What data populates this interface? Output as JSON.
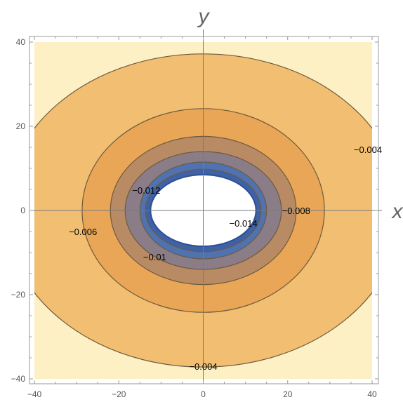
{
  "chart_data": {
    "type": "contour",
    "xlabel": "x",
    "ylabel": "y",
    "xlim": [
      -40,
      40
    ],
    "ylim": [
      -40,
      40
    ],
    "xticks": [
      -40,
      -20,
      0,
      20,
      40
    ],
    "yticks": [
      -40,
      -20,
      0,
      20,
      40
    ],
    "xtick_labels": [
      "−40",
      "−20",
      "0",
      "20",
      "40"
    ],
    "ytick_labels": [
      "−40",
      "−20",
      "0",
      "20",
      "40"
    ],
    "grid": false,
    "background_color": "#fdf0c5",
    "hole": {
      "rx": 12.5,
      "ry": 8.5
    },
    "levels": [
      {
        "level": -0.004,
        "rx": 47.0,
        "ry": 37.2,
        "fill": "#f1be72"
      },
      {
        "level": -0.006,
        "rx": 28.7,
        "ry": 24.2,
        "fill": "#e9a657"
      },
      {
        "level": -0.008,
        "rx": 22.0,
        "ry": 17.6,
        "fill": "#b88b65"
      },
      {
        "level": -0.01,
        "rx": 18.5,
        "ry": 14.0,
        "fill": "#8a7d88"
      },
      {
        "level": -0.012,
        "rx": 15.0,
        "ry": 11.5,
        "fill": "#4f72b0"
      },
      {
        "level": -0.014,
        "rx": 13.7,
        "ry": 9.8,
        "fill": "#3f62a6"
      }
    ],
    "contour_labels": [
      {
        "text": "−0.004",
        "x": 39.0,
        "y": 14.5
      },
      {
        "text": "−0.004",
        "x": 0.0,
        "y": -37.0
      },
      {
        "text": "−0.006",
        "x": -28.5,
        "y": -5.0
      },
      {
        "text": "−0.008",
        "x": 22.0,
        "y": 0.0
      },
      {
        "text": "−0.01",
        "x": -11.5,
        "y": -11.0
      },
      {
        "text": "−0.012",
        "x": -13.5,
        "y": 4.8
      },
      {
        "text": "−0.014",
        "x": 9.5,
        "y": -3.0
      }
    ],
    "colors": {
      "frame": "#999999",
      "axes": "#7a7a7a",
      "contour_line": "#6e5a3c"
    }
  }
}
